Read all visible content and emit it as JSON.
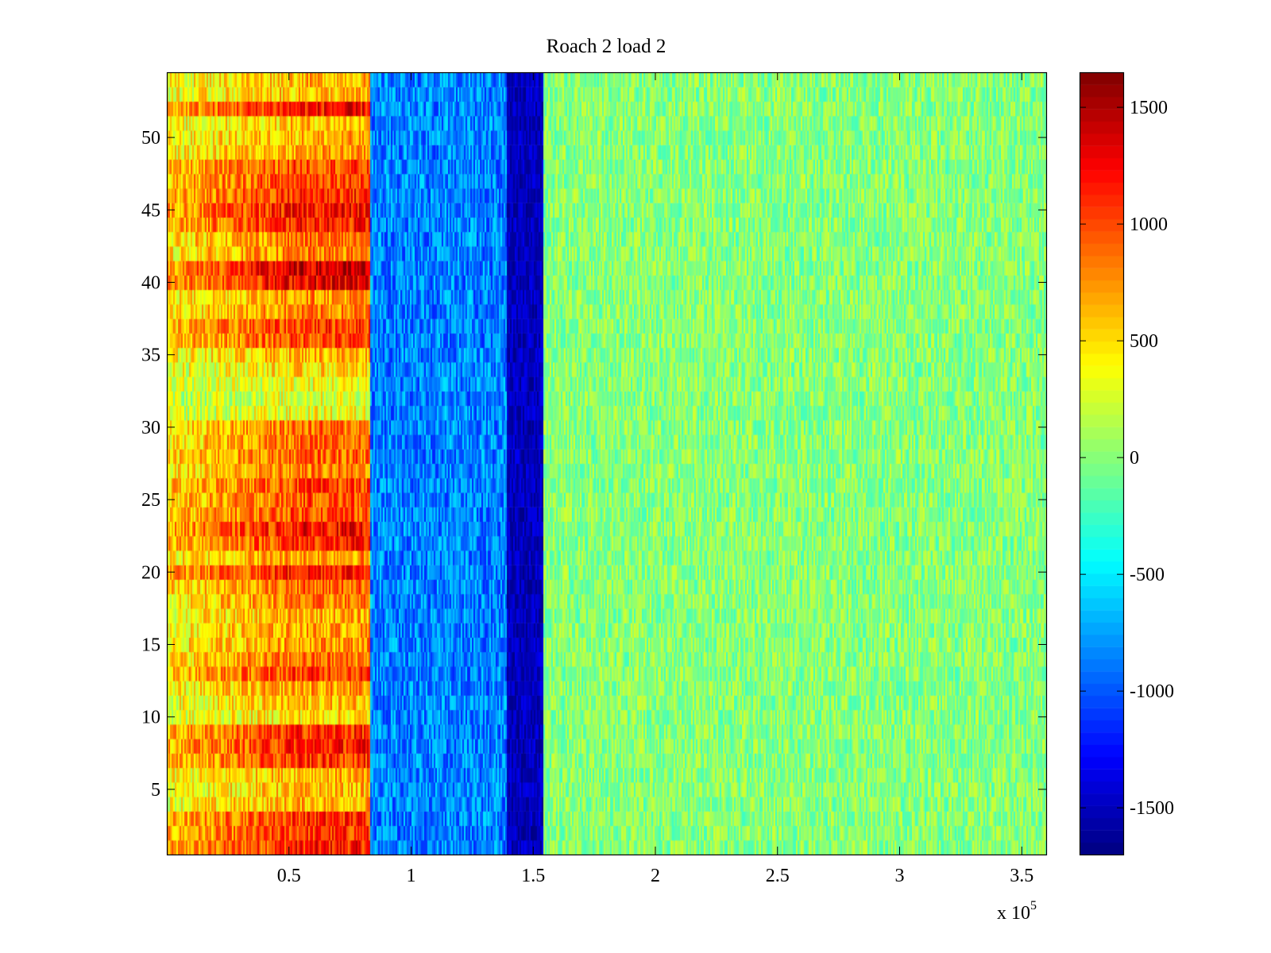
{
  "chart_data": {
    "type": "heatmap",
    "title": "Roach 2 load 2",
    "xlabel": "",
    "ylabel": "",
    "x_multiplier_label": "x 10",
    "x_multiplier_exponent": "5",
    "xlim": [
      0,
      3.6
    ],
    "ylim": [
      0.5,
      54.5
    ],
    "xticks": [
      0.5,
      1,
      1.5,
      2,
      2.5,
      3,
      3.5
    ],
    "xtick_labels": [
      "0.5",
      "1",
      "1.5",
      "2",
      "2.5",
      "3",
      "3.5"
    ],
    "yticks": [
      5,
      10,
      15,
      20,
      25,
      30,
      35,
      40,
      45,
      50
    ],
    "ytick_labels": [
      "5",
      "10",
      "15",
      "20",
      "25",
      "30",
      "35",
      "40",
      "45",
      "50"
    ],
    "rows": 54,
    "colormap": "jet",
    "clim": [
      -1700,
      1650
    ],
    "colorbar_ticks": [
      1500,
      1000,
      500,
      0,
      -500,
      -1000,
      -1500
    ],
    "colorbar_labels": [
      "1500",
      "1000",
      "500",
      "0",
      "-500",
      "-1000",
      "-1500"
    ],
    "bands": [
      {
        "x_start": 0.0,
        "x_end": 0.83,
        "mean_value": 700,
        "description": "positive band (yellow-red)"
      },
      {
        "x_start": 0.83,
        "x_end": 1.39,
        "mean_value": -850,
        "description": "negative band (blue)"
      },
      {
        "x_start": 1.39,
        "x_end": 1.54,
        "mean_value": -1500,
        "description": "strong negative band (dark blue)"
      },
      {
        "x_start": 1.54,
        "x_end": 3.6,
        "mean_value": 0,
        "description": "near-zero background (green)"
      }
    ],
    "row_profile_positive_band": [
      1150,
      1050,
      1100,
      650,
      600,
      650,
      1050,
      1150,
      1100,
      500,
      600,
      700,
      1050,
      850,
      750,
      700,
      650,
      800,
      900,
      1200,
      750,
      1100,
      1200,
      1000,
      950,
      1000,
      800,
      900,
      850,
      850,
      350,
      300,
      350,
      500,
      650,
      1000,
      1050,
      800,
      750,
      1300,
      1350,
      800,
      850,
      1150,
      1200,
      1100,
      1050,
      1000,
      700,
      650,
      600,
      1200,
      600,
      650
    ]
  }
}
